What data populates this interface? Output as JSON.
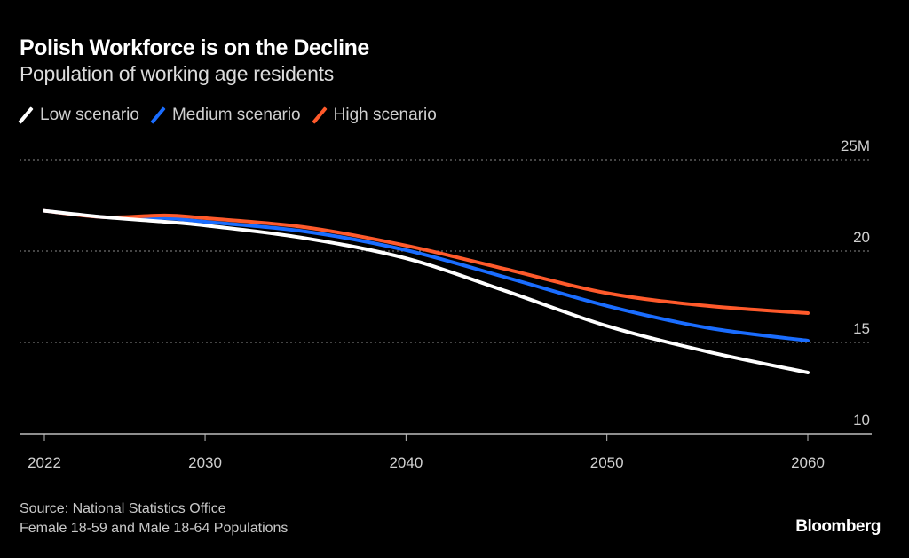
{
  "chart_data": {
    "type": "line",
    "title": "Polish Workforce is on the Decline",
    "subtitle": "Population of working age residents",
    "xlabel": "",
    "ylabel": "",
    "x": [
      2022,
      2025,
      2028,
      2030,
      2035,
      2040,
      2045,
      2050,
      2055,
      2060
    ],
    "series": [
      {
        "name": "Low scenario",
        "color": "#ffffff",
        "values": [
          22.2,
          21.85,
          21.6,
          21.4,
          20.7,
          19.6,
          17.8,
          15.9,
          14.5,
          13.35
        ]
      },
      {
        "name": "Medium scenario",
        "color": "#1a6dff",
        "values": [
          22.2,
          21.85,
          21.8,
          21.6,
          21.07,
          20.05,
          18.55,
          17.0,
          15.8,
          15.1
        ]
      },
      {
        "name": "High scenario",
        "color": "#ff5a2b",
        "values": [
          22.2,
          21.85,
          21.95,
          21.8,
          21.3,
          20.3,
          19.0,
          17.7,
          17.0,
          16.6
        ]
      }
    ],
    "xticks": [
      2022,
      2030,
      2040,
      2050,
      2060
    ],
    "xtick_labels": [
      "2022",
      "2030",
      "2040",
      "2050",
      "2060"
    ],
    "yticks": [
      10,
      15,
      20,
      25
    ],
    "ytick_labels": [
      "10",
      "15",
      "20",
      "25M"
    ],
    "xlim": [
      2022,
      2060
    ],
    "ylim": [
      10,
      25
    ],
    "grid": true,
    "legend_position": "top-left"
  },
  "footer": {
    "source": "Source: National Statistics Office",
    "note": "Female 18-59 and Male 18-64 Populations",
    "brand": "Bloomberg"
  }
}
